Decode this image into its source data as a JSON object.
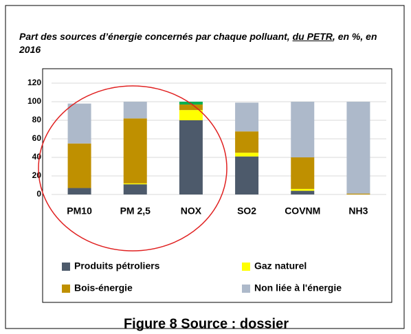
{
  "chart_data": {
    "type": "stacked_bar",
    "title": [
      "Part des sources d’énergie concernés par chaque polluant, ",
      "du PETR",
      ", en %, en 2016"
    ],
    "caption": "Figure 8 Source : dossier",
    "categories": [
      "PM10",
      "PM 2,5",
      "NOX",
      "SO2",
      "COVNM",
      "NH3"
    ],
    "series": [
      {
        "name": "Produits pétroliers",
        "color": "#4d5a6b",
        "values": [
          7,
          11,
          80,
          41,
          4,
          0
        ]
      },
      {
        "name": "Gaz naturel",
        "color": "#ffff00",
        "values": [
          0,
          1,
          11,
          4,
          2,
          0
        ]
      },
      {
        "name": "Bois-énergie",
        "color": "#bf9000",
        "values": [
          48,
          70,
          6,
          23,
          34,
          1
        ]
      },
      {
        "name": "Non liée à l'énergie",
        "color": "#adb9ca",
        "values": [
          43,
          18,
          0,
          31,
          60,
          99
        ]
      },
      {
        "name": null,
        "color": "#00b050",
        "values": [
          0,
          0,
          3,
          0,
          0,
          0
        ]
      }
    ],
    "ylim": [
      0,
      120
    ],
    "yticks": [
      0,
      20,
      40,
      60,
      80,
      100,
      120
    ],
    "grid": true
  }
}
